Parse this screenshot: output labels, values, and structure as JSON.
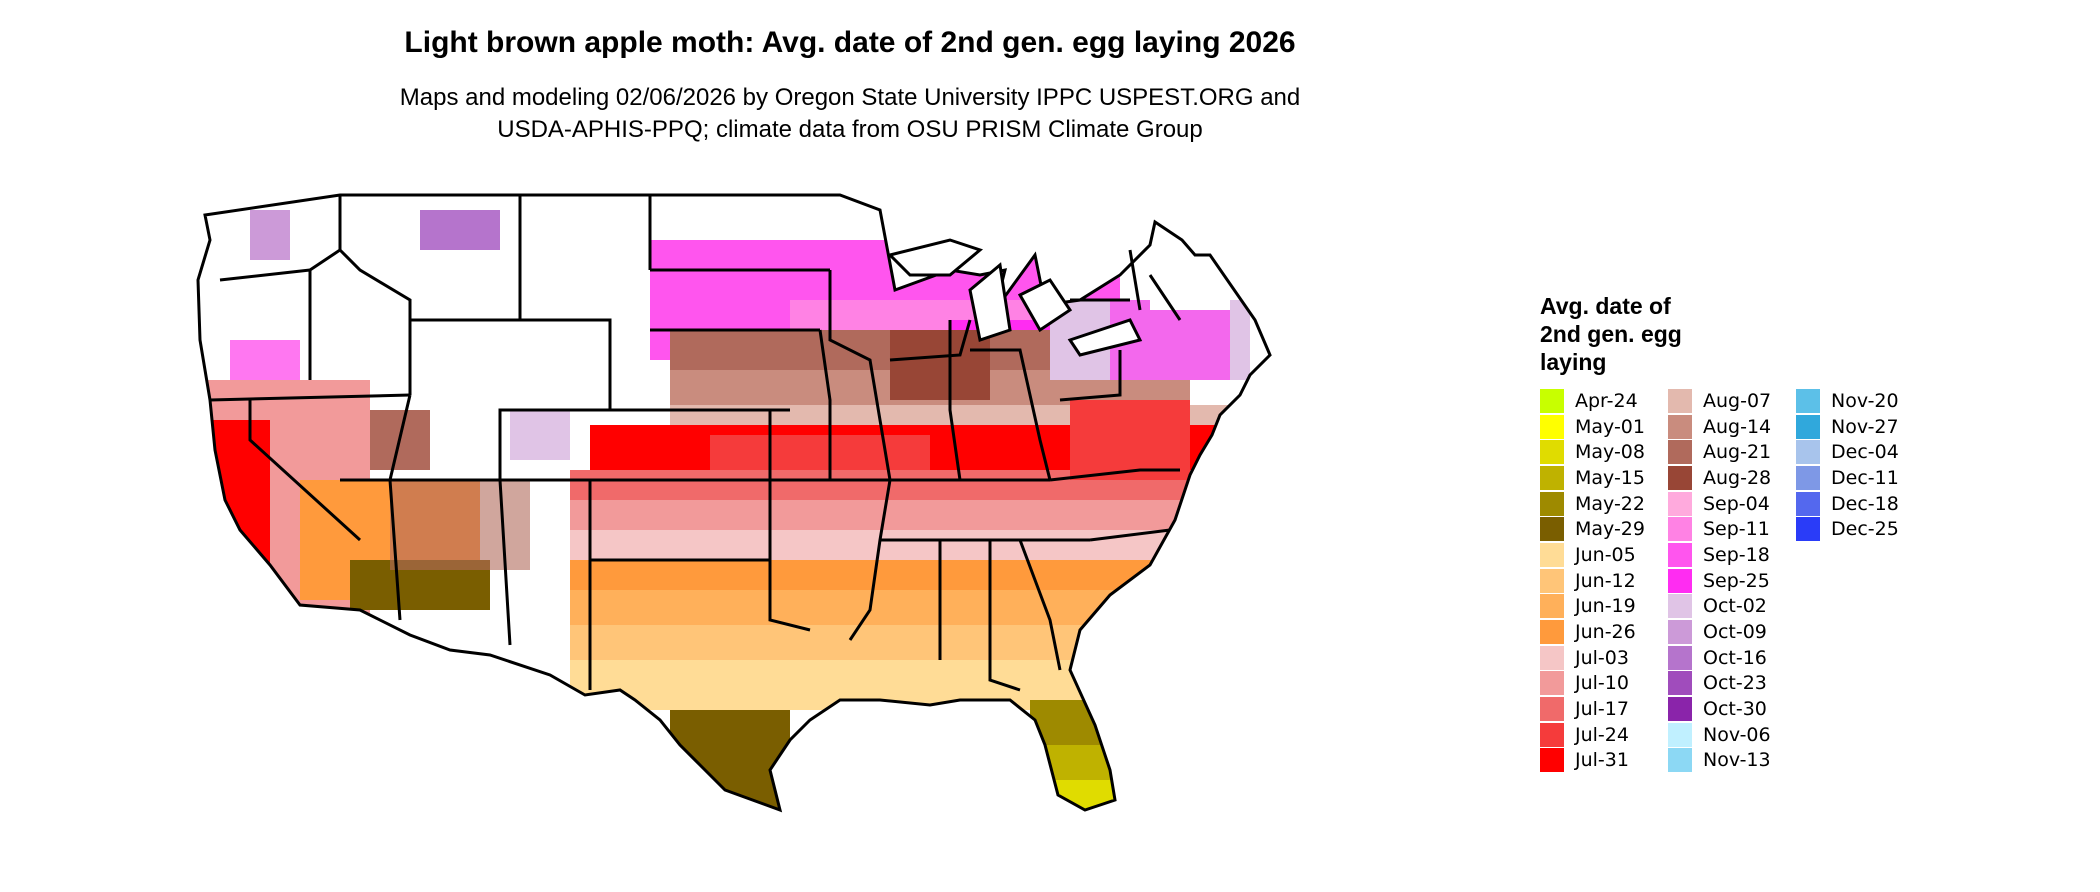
{
  "title": "Light brown apple moth: Avg. date of 2nd gen. egg laying 2026",
  "subtitle_line1": "Maps and modeling 02/06/2026 by Oregon State University IPPC USPEST.ORG and",
  "subtitle_line2": "USDA-APHIS-PPQ; climate data from OSU PRISM Climate Group",
  "legend": {
    "title_lines": [
      "Avg. date of",
      "2nd gen. egg",
      "laying"
    ],
    "items": [
      {
        "label": "Apr-24",
        "color": "#c8ff00"
      },
      {
        "label": "May-01",
        "color": "#ffff00"
      },
      {
        "label": "May-08",
        "color": "#e0dc00"
      },
      {
        "label": "May-15",
        "color": "#bfb200"
      },
      {
        "label": "May-22",
        "color": "#9e8a00"
      },
      {
        "label": "May-29",
        "color": "#7a5e00"
      },
      {
        "label": "Jun-05",
        "color": "#ffdc96"
      },
      {
        "label": "Jun-12",
        "color": "#ffc578"
      },
      {
        "label": "Jun-19",
        "color": "#ffb05a"
      },
      {
        "label": "Jun-26",
        "color": "#ff9a3c"
      },
      {
        "label": "Jul-03",
        "color": "#f5c6c6"
      },
      {
        "label": "Jul-10",
        "color": "#f29a9a"
      },
      {
        "label": "Jul-17",
        "color": "#f06a6a"
      },
      {
        "label": "Jul-24",
        "color": "#f53b3b"
      },
      {
        "label": "Jul-31",
        "color": "#ff0000"
      },
      {
        "label": "Aug-07",
        "color": "#e3b9ae"
      },
      {
        "label": "Aug-14",
        "color": "#c98c7e"
      },
      {
        "label": "Aug-21",
        "color": "#b06a5c"
      },
      {
        "label": "Aug-28",
        "color": "#984636"
      },
      {
        "label": "Sep-04",
        "color": "#ffaadd"
      },
      {
        "label": "Sep-11",
        "color": "#ff82e4"
      },
      {
        "label": "Sep-18",
        "color": "#ff55ee"
      },
      {
        "label": "Sep-25",
        "color": "#ff2cf2"
      },
      {
        "label": "Oct-02",
        "color": "#e0c4e6"
      },
      {
        "label": "Oct-09",
        "color": "#cc9ad8"
      },
      {
        "label": "Oct-16",
        "color": "#b574cc"
      },
      {
        "label": "Oct-23",
        "color": "#a04cbc"
      },
      {
        "label": "Oct-30",
        "color": "#8a24aa"
      },
      {
        "label": "Nov-06",
        "color": "#c0f0ff"
      },
      {
        "label": "Nov-13",
        "color": "#8cd8f4"
      },
      {
        "label": "Nov-20",
        "color": "#5cc0e8"
      },
      {
        "label": "Nov-27",
        "color": "#30a8dc"
      },
      {
        "label": "Dec-04",
        "color": "#a8c4ec"
      },
      {
        "label": "Dec-11",
        "color": "#7e98e6"
      },
      {
        "label": "Dec-18",
        "color": "#5468ee"
      },
      {
        "label": "Dec-25",
        "color": "#2a3cf8"
      }
    ]
  }
}
